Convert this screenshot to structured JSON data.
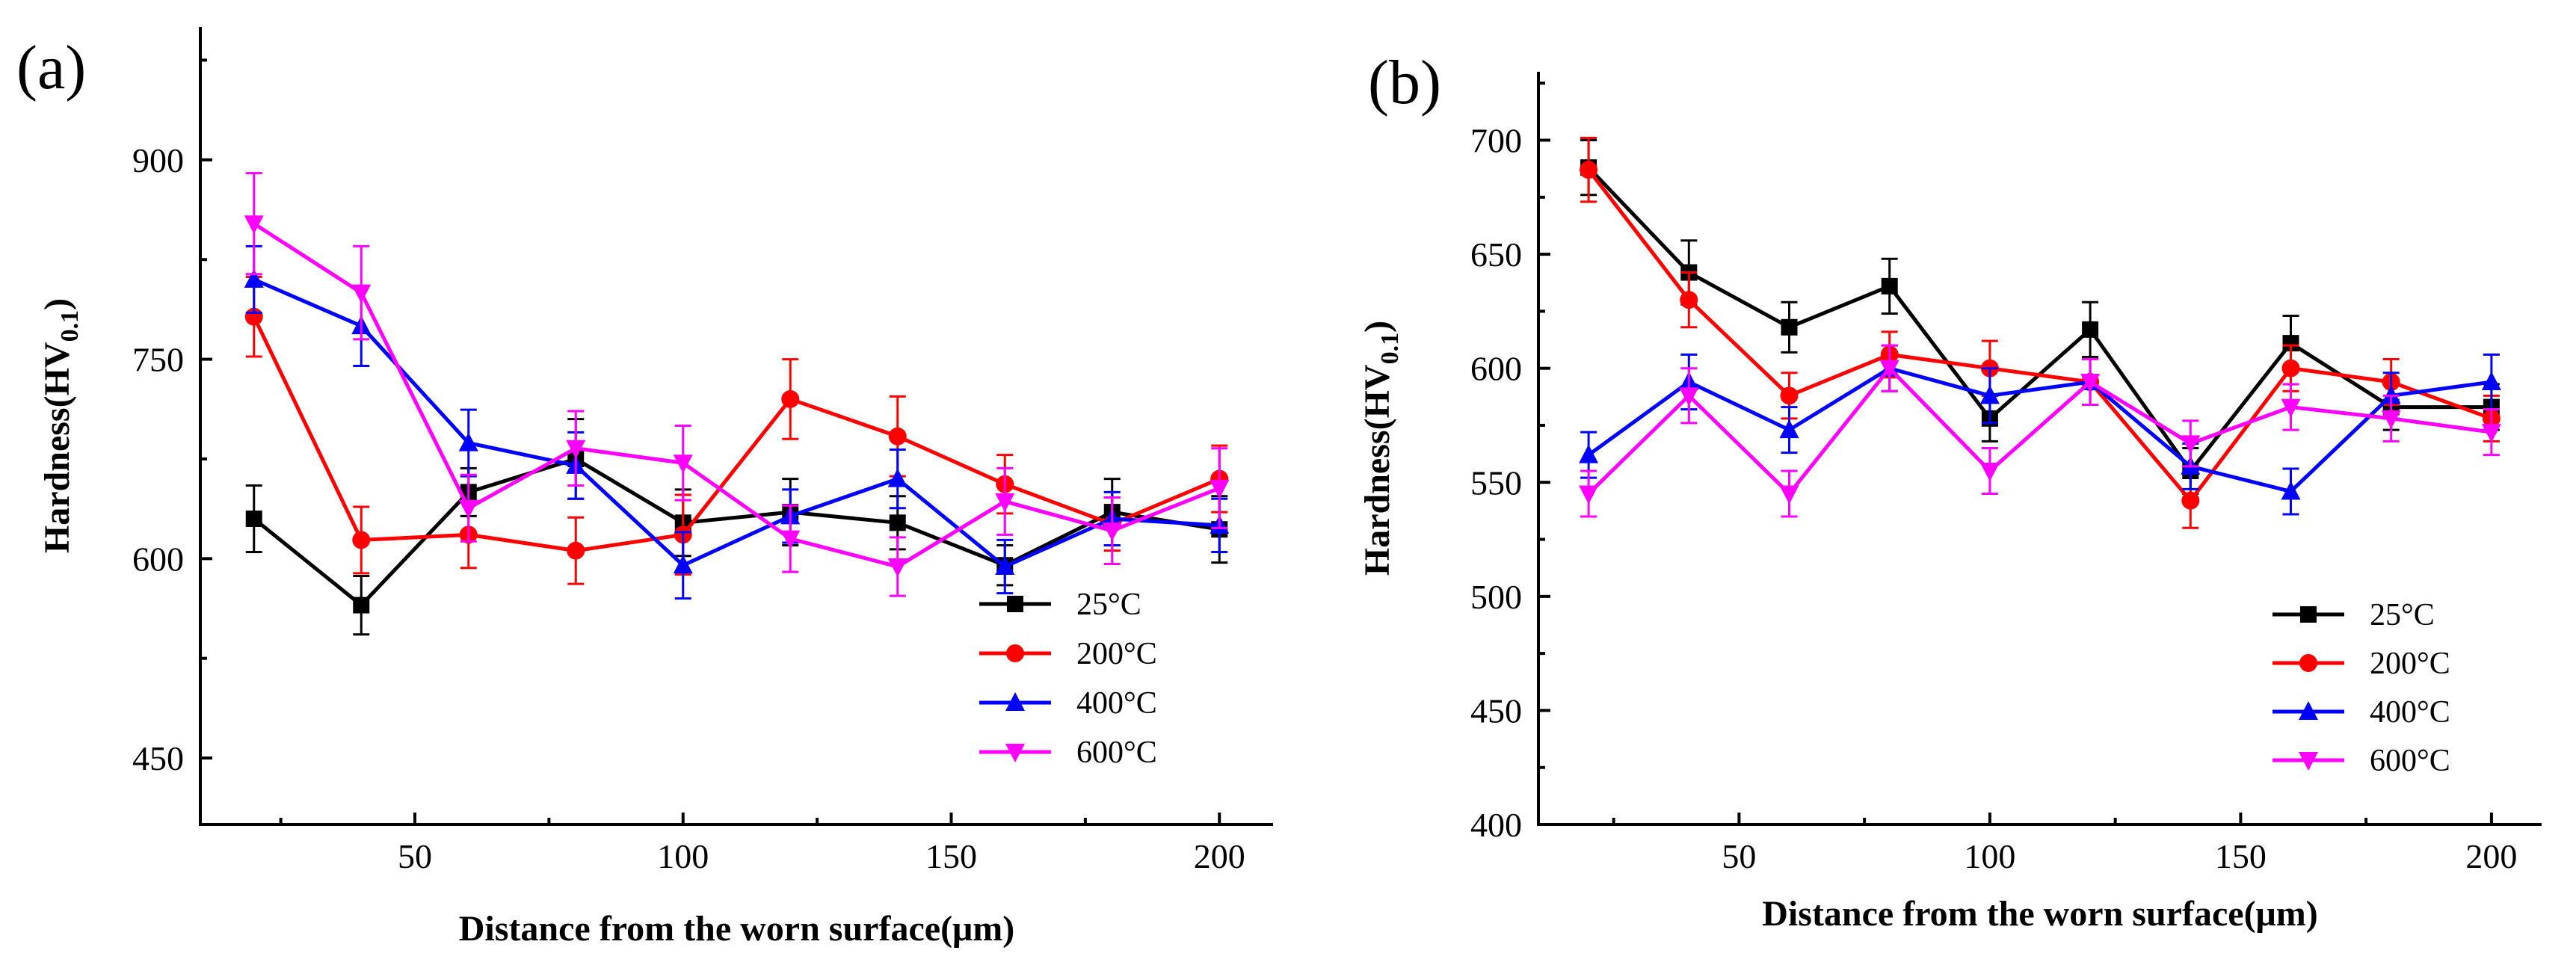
{
  "chart_data": [
    {
      "panel_label": "(a)",
      "type": "line",
      "xlabel": "Distance from the worn surface(μm)",
      "ylabel_main": "Hardness(HV",
      "ylabel_sub": "0.1",
      "ylabel_close": ")",
      "xlim": [
        10,
        210
      ],
      "ylim": [
        400,
        1000
      ],
      "xticks": [
        50,
        100,
        150,
        200
      ],
      "xtick_labels": [
        "50",
        "100",
        "150",
        "200"
      ],
      "yticks": [
        450,
        600,
        750,
        900
      ],
      "ytick_labels": [
        "450",
        "600",
        "750",
        "900"
      ],
      "legend_position": "bottom-right",
      "x": [
        20,
        40,
        60,
        80,
        100,
        120,
        140,
        160,
        180,
        200
      ],
      "series": [
        {
          "name": "25°C",
          "color": "#000000",
          "marker": "square",
          "values": [
            630,
            565,
            650,
            675,
            627,
            635,
            627,
            595,
            635,
            622
          ],
          "errors": [
            25,
            22,
            18,
            30,
            25,
            25,
            20,
            15,
            25,
            25
          ]
        },
        {
          "name": "200°C",
          "color": "#ff0000",
          "marker": "circle",
          "values": [
            782,
            614,
            618,
            606,
            618,
            720,
            692,
            656,
            626,
            660
          ],
          "errors": [
            30,
            25,
            25,
            25,
            30,
            30,
            30,
            22,
            20,
            25
          ]
        },
        {
          "name": "400°C",
          "color": "#0000ff",
          "marker": "triangle-up",
          "values": [
            810,
            775,
            687,
            670,
            595,
            632,
            660,
            594,
            630,
            625
          ],
          "errors": [
            25,
            30,
            25,
            25,
            25,
            20,
            22,
            20,
            20,
            20
          ]
        },
        {
          "name": "600°C",
          "color": "#ff00ff",
          "marker": "triangle-down",
          "values": [
            852,
            800,
            638,
            683,
            672,
            615,
            594,
            643,
            621,
            653
          ],
          "errors": [
            38,
            35,
            25,
            28,
            28,
            25,
            22,
            25,
            25,
            30
          ]
        }
      ]
    },
    {
      "panel_label": "(b)",
      "type": "line",
      "xlabel": "Distance from the worn surface(μm)",
      "ylabel_main": "Hardness(HV",
      "ylabel_sub": "0.1",
      "ylabel_close": ")",
      "xlim": [
        10,
        210
      ],
      "ylim": [
        400,
        730
      ],
      "xticks": [
        50,
        100,
        150,
        200
      ],
      "xtick_labels": [
        "50",
        "100",
        "150",
        "200"
      ],
      "yticks": [
        400,
        450,
        500,
        550,
        600,
        650,
        700
      ],
      "ytick_labels": [
        "400",
        "450",
        "500",
        "550",
        "600",
        "650",
        "700"
      ],
      "legend_position": "bottom-right",
      "x": [
        20,
        40,
        60,
        80,
        100,
        120,
        140,
        160,
        180,
        200
      ],
      "series": [
        {
          "name": "25°C",
          "color": "#000000",
          "marker": "square",
          "values": [
            688,
            642,
            618,
            636,
            578,
            617,
            555,
            611,
            583,
            583
          ],
          "errors": [
            12,
            14,
            11,
            12,
            10,
            12,
            10,
            12,
            10,
            10
          ]
        },
        {
          "name": "200°C",
          "color": "#ff0000",
          "marker": "circle",
          "values": [
            687,
            630,
            588,
            606,
            600,
            594,
            542,
            600,
            594,
            578
          ],
          "errors": [
            14,
            12,
            10,
            10,
            12,
            10,
            12,
            10,
            10,
            10
          ]
        },
        {
          "name": "400°C",
          "color": "#0000ff",
          "marker": "triangle-up",
          "values": [
            562,
            594,
            573,
            600,
            588,
            594,
            557,
            546,
            588,
            594
          ],
          "errors": [
            10,
            12,
            10,
            10,
            12,
            10,
            10,
            10,
            10,
            12
          ]
        },
        {
          "name": "600°C",
          "color": "#ff00ff",
          "marker": "triangle-down",
          "values": [
            545,
            588,
            545,
            600,
            555,
            594,
            567,
            583,
            578,
            572
          ],
          "errors": [
            10,
            12,
            10,
            10,
            10,
            10,
            10,
            10,
            10,
            10
          ]
        }
      ]
    }
  ]
}
